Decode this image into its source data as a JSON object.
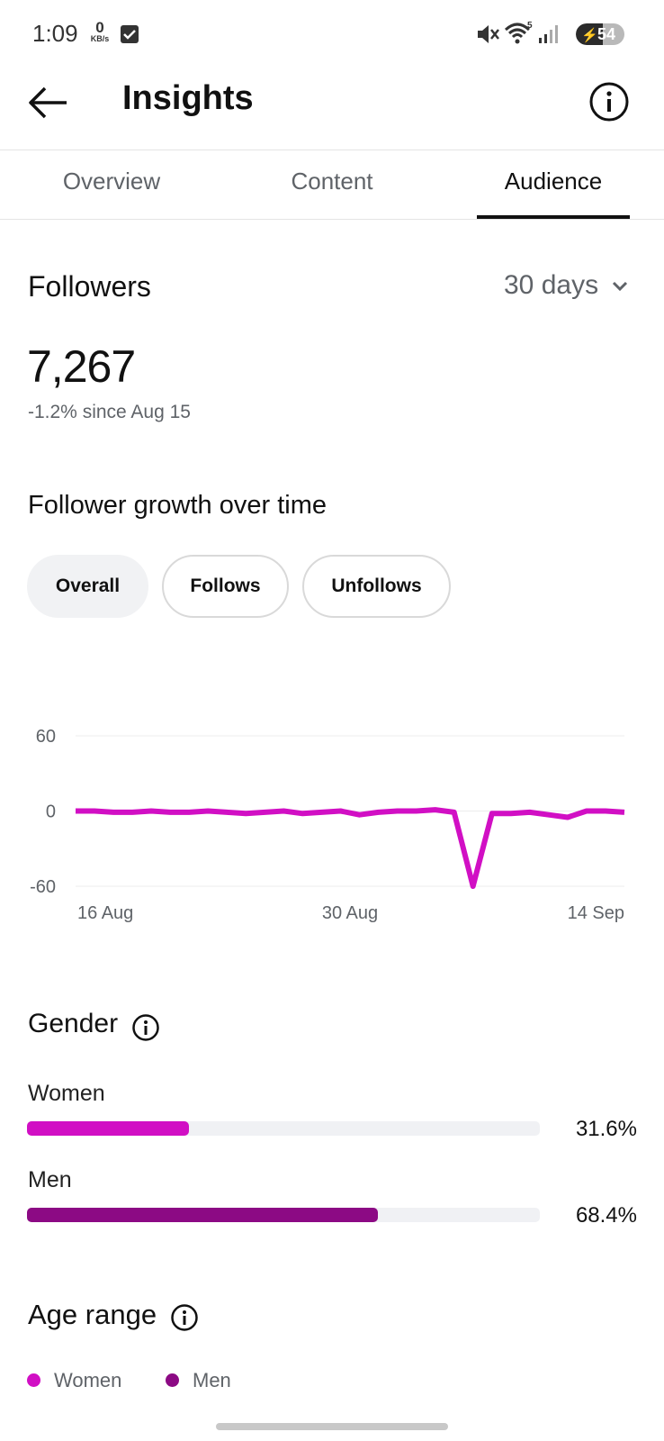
{
  "status_bar": {
    "time": "1:09",
    "net_speed_value": "0",
    "net_speed_unit": "KB/s",
    "battery_level": "54"
  },
  "header": {
    "title": "Insights"
  },
  "tabs": [
    {
      "label": "Overview",
      "active": false
    },
    {
      "label": "Content",
      "active": false
    },
    {
      "label": "Audience",
      "active": true
    }
  ],
  "followers": {
    "heading": "Followers",
    "range": "30 days",
    "count": "7,267",
    "change": "-1.2% since Aug 15"
  },
  "growth": {
    "heading": "Follower growth over time",
    "chips": [
      {
        "label": "Overall",
        "selected": true
      },
      {
        "label": "Follows",
        "selected": false
      },
      {
        "label": "Unfollows",
        "selected": false
      }
    ]
  },
  "chart_data": {
    "type": "line",
    "title": "",
    "xlabel": "",
    "ylabel": "",
    "ylim": [
      -60,
      60
    ],
    "yticks": [
      "60",
      "0",
      "-60"
    ],
    "xticks": [
      "16 Aug",
      "30 Aug",
      "14 Sep"
    ],
    "grid": true,
    "color": "#d10fc4",
    "x": [
      "16 Aug",
      "17 Aug",
      "18 Aug",
      "19 Aug",
      "20 Aug",
      "21 Aug",
      "22 Aug",
      "23 Aug",
      "24 Aug",
      "25 Aug",
      "26 Aug",
      "27 Aug",
      "28 Aug",
      "29 Aug",
      "30 Aug",
      "31 Aug",
      "1 Sep",
      "2 Sep",
      "3 Sep",
      "4 Sep",
      "5 Sep",
      "6 Sep",
      "7 Sep",
      "8 Sep",
      "9 Sep",
      "10 Sep",
      "11 Sep",
      "12 Sep",
      "13 Sep",
      "14 Sep"
    ],
    "series": [
      {
        "values": [
          0,
          0,
          -1,
          -1,
          0,
          -1,
          -1,
          0,
          -1,
          -2,
          -1,
          0,
          -2,
          -1,
          0,
          -3,
          -1,
          0,
          0,
          1,
          -1,
          -60,
          -2,
          -2,
          -1,
          -3,
          -5,
          0,
          0,
          -1
        ]
      }
    ]
  },
  "gender": {
    "heading": "Gender",
    "bars": [
      {
        "label": "Women",
        "value_text": "31.6%",
        "fraction": 0.316,
        "color": "#d10fc4"
      },
      {
        "label": "Men",
        "value_text": "68.4%",
        "fraction": 0.684,
        "color": "#8c0a84"
      }
    ]
  },
  "age": {
    "heading": "Age range",
    "legend": [
      {
        "label": "Women",
        "color": "#d10fc4"
      },
      {
        "label": "Men",
        "color": "#8c0a84"
      }
    ]
  }
}
